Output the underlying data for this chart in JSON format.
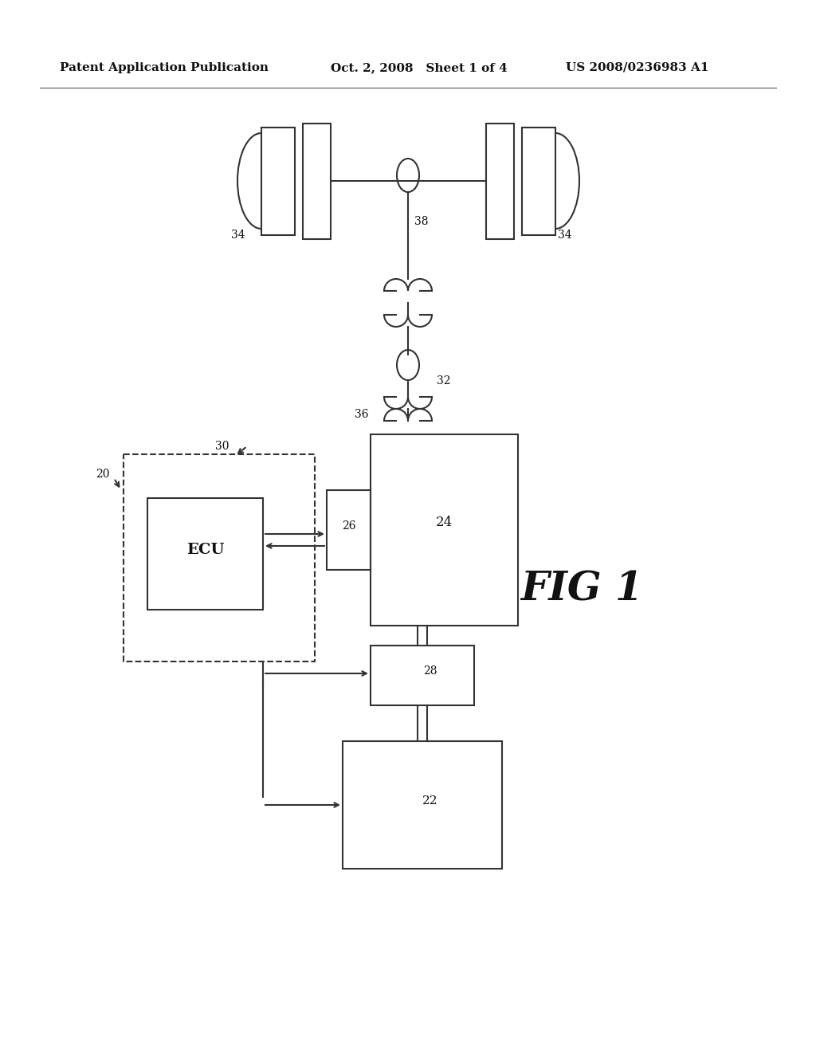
{
  "bg_color": "#ffffff",
  "header_left": "Patent Application Publication",
  "header_mid": "Oct. 2, 2008   Sheet 1 of 4",
  "header_right": "US 2008/0236983 A1",
  "fig_label": "FIG 1",
  "label_20": "20",
  "label_22": "22",
  "label_24": "24",
  "label_26": "26",
  "label_28": "28",
  "label_30": "30",
  "label_32": "32",
  "label_34": "34",
  "label_36": "36",
  "label_38": "38",
  "label_ECU": "ECU"
}
